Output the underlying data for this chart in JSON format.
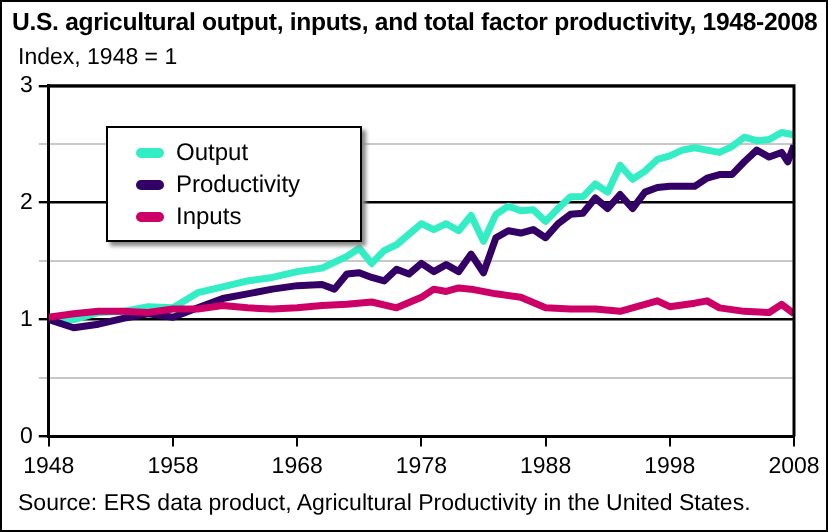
{
  "chart_data": {
    "type": "line",
    "title": "U.S. agricultural output, inputs, and total factor productivity, 1948-2008",
    "ylabel": "Index, 1948 = 1",
    "annotations": [
      "Source: ERS data product, Agricultural Productivity in the United States."
    ],
    "xlim": [
      1948,
      2008
    ],
    "xticks": [
      1948,
      1958,
      1968,
      1978,
      1988,
      1998,
      2008
    ],
    "ylim": [
      0,
      3
    ],
    "yticks": [
      0,
      {
        "value": 0.5,
        "label": null
      },
      1,
      {
        "value": 1.5,
        "label": null
      },
      2,
      {
        "value": 2.5,
        "label": null
      },
      3
    ],
    "grid": "y",
    "legend": "top left",
    "marker": "none",
    "line_style": "solid",
    "series": [
      {
        "name": "Output",
        "color": "#33eec5",
        "x": [
          1948,
          1950,
          1952,
          1954,
          1956,
          1958,
          1960,
          1962,
          1964,
          1966,
          1968,
          1970,
          1972,
          1973,
          1974,
          1975,
          1976,
          1977,
          1978,
          1979,
          1980,
          1981,
          1982,
          1983,
          1984,
          1985,
          1986,
          1987,
          1988,
          1989,
          1990,
          1991,
          1992,
          1993,
          1994,
          1995,
          1996,
          1997,
          1998,
          1999,
          2000,
          2001,
          2002,
          2003,
          2004,
          2005,
          2006,
          2007,
          2008
        ],
        "values": [
          1.0,
          1.0,
          1.06,
          1.07,
          1.11,
          1.1,
          1.23,
          1.28,
          1.33,
          1.36,
          1.41,
          1.44,
          1.54,
          1.61,
          1.48,
          1.59,
          1.64,
          1.73,
          1.82,
          1.77,
          1.82,
          1.76,
          1.89,
          1.67,
          1.9,
          1.97,
          1.93,
          1.94,
          1.84,
          1.95,
          2.05,
          2.05,
          2.16,
          2.09,
          2.32,
          2.2,
          2.27,
          2.37,
          2.4,
          2.45,
          2.47,
          2.45,
          2.43,
          2.48,
          2.56,
          2.53,
          2.54,
          2.6,
          2.58
        ]
      },
      {
        "name": "Productivity",
        "color": "#330066",
        "x": [
          1948,
          1950,
          1952,
          1954,
          1956,
          1958,
          1960,
          1962,
          1964,
          1966,
          1968,
          1970,
          1971,
          1972,
          1973,
          1974,
          1975,
          1976,
          1977,
          1978,
          1979,
          1980,
          1981,
          1982,
          1983,
          1984,
          1985,
          1986,
          1987,
          1988,
          1989,
          1990,
          1991,
          1992,
          1993,
          1994,
          1995,
          1996,
          1997,
          1998,
          1999,
          2000,
          2001,
          2002,
          2003,
          2004,
          2005,
          2006,
          2007,
          2007.5,
          2008
        ],
        "values": [
          1.0,
          0.93,
          0.96,
          1.01,
          1.05,
          1.02,
          1.1,
          1.18,
          1.22,
          1.26,
          1.29,
          1.3,
          1.26,
          1.39,
          1.4,
          1.36,
          1.33,
          1.43,
          1.39,
          1.48,
          1.41,
          1.47,
          1.41,
          1.56,
          1.4,
          1.7,
          1.76,
          1.74,
          1.77,
          1.7,
          1.82,
          1.9,
          1.91,
          2.04,
          1.95,
          2.07,
          1.95,
          2.09,
          2.13,
          2.14,
          2.14,
          2.14,
          2.21,
          2.24,
          2.24,
          2.35,
          2.45,
          2.39,
          2.43,
          2.35,
          2.49
        ]
      },
      {
        "name": "Inputs",
        "color": "#cc0066",
        "x": [
          1948,
          1950,
          1952,
          1954,
          1956,
          1958,
          1960,
          1962,
          1964,
          1966,
          1968,
          1970,
          1972,
          1974,
          1976,
          1978,
          1979,
          1980,
          1981,
          1982,
          1984,
          1986,
          1988,
          1990,
          1992,
          1994,
          1996,
          1997,
          1998,
          2000,
          2001,
          2002,
          2004,
          2006,
          2007,
          2008
        ],
        "values": [
          1.02,
          1.05,
          1.07,
          1.07,
          1.06,
          1.09,
          1.09,
          1.12,
          1.1,
          1.09,
          1.1,
          1.12,
          1.13,
          1.15,
          1.1,
          1.19,
          1.26,
          1.24,
          1.27,
          1.26,
          1.22,
          1.19,
          1.1,
          1.09,
          1.09,
          1.07,
          1.13,
          1.16,
          1.11,
          1.14,
          1.16,
          1.1,
          1.07,
          1.06,
          1.13,
          1.05
        ]
      }
    ]
  }
}
